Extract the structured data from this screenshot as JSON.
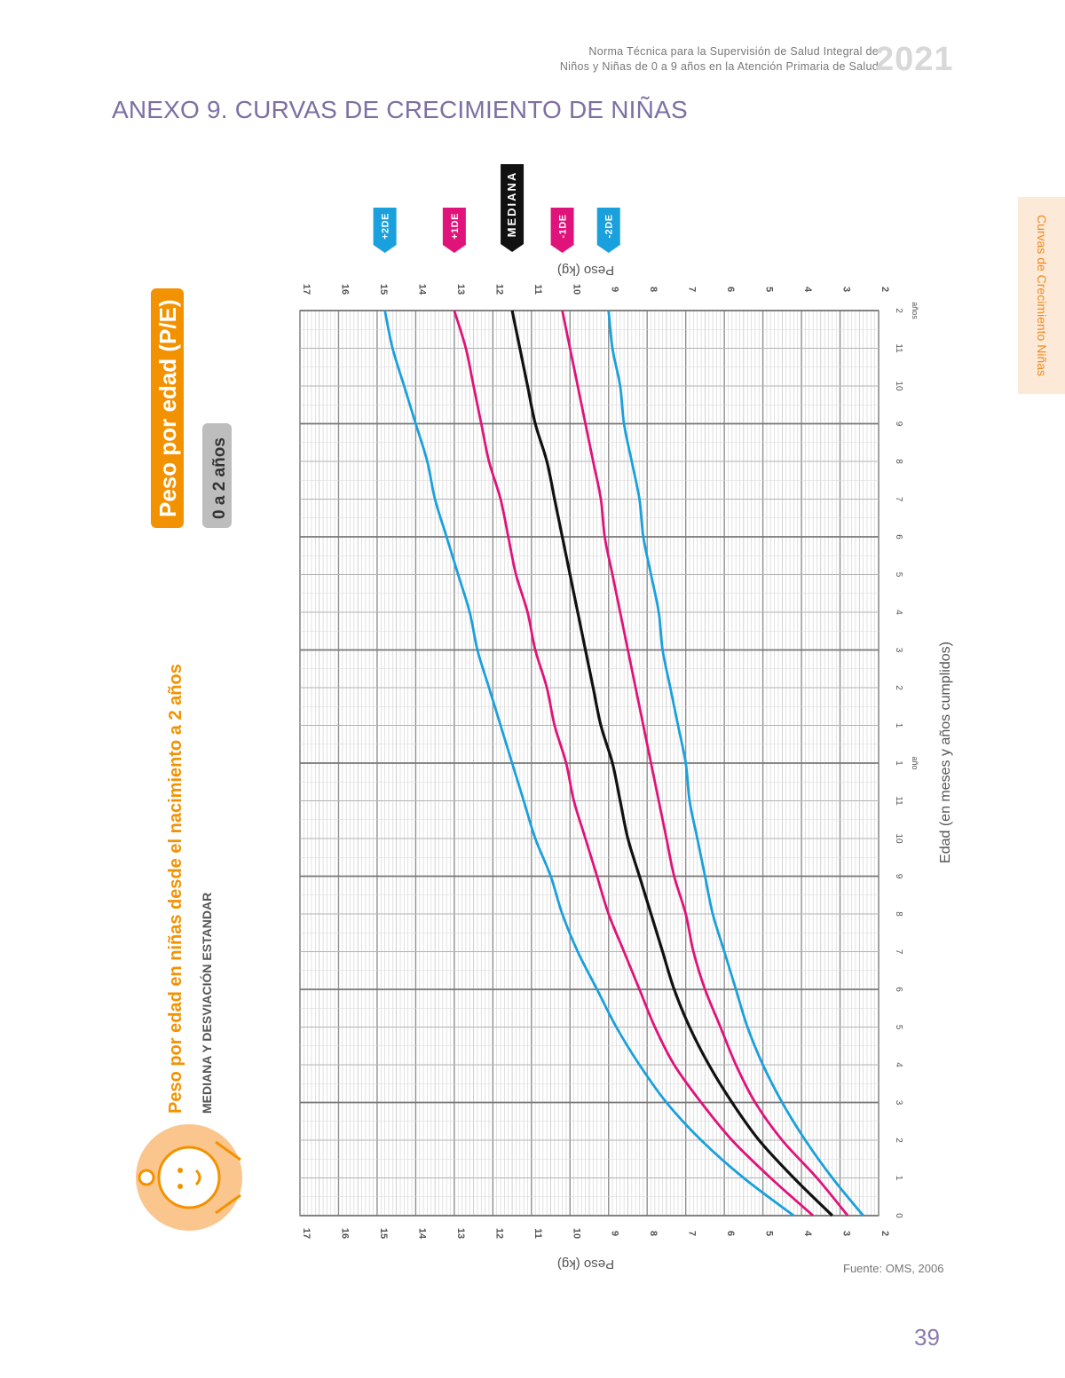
{
  "header": {
    "line1": "Norma Técnica para la Supervisión de Salud Integral de",
    "line2": "Niños y Niñas de 0 a 9 años en la Atención Primaria de Salud",
    "year": "2021"
  },
  "annex_title": "ANEXO 9.    CURVAS DE CRECIMIENTO DE NIÑAS",
  "side_tab": "Curvas de Crecimiento Niñas",
  "chart_header": {
    "title": "Peso por edad (P/E)",
    "age_range": "0 a 2 años",
    "subtitle": "Peso por edad en niñas desde el nacimiento a 2 años",
    "subtitle2": "MEDIANA Y DESVIACIÓN ESTANDAR"
  },
  "footer": {
    "source": "Fuente: OMS, 2006",
    "page": "39"
  },
  "colors": {
    "orange": "#f39200",
    "blue": "#1aa0dc",
    "magenta": "#e0137a",
    "black": "#111111",
    "grey_badge": "#bdbdbd"
  },
  "icon": "baby-face-icon",
  "chart_data": {
    "type": "line",
    "title": "Peso por edad en niñas desde el nacimiento a 2 años",
    "xlabel": "Edad (en meses y años cumplidos)",
    "ylabel": "Peso (kg)",
    "x_unit": "meses",
    "xlim": [
      0,
      24
    ],
    "ylim": [
      2,
      17
    ],
    "y_ticks": [
      2,
      3,
      4,
      5,
      6,
      7,
      8,
      9,
      10,
      11,
      12,
      13,
      14,
      15,
      16,
      17
    ],
    "x_tick_labels": [
      "0",
      "1",
      "2",
      "3",
      "4",
      "5",
      "6",
      "7",
      "8",
      "9",
      "10",
      "11",
      "1",
      "1",
      "2",
      "3",
      "4",
      "5",
      "6",
      "7",
      "8",
      "9",
      "10",
      "11",
      "2"
    ],
    "x_year_labels": [
      {
        "x": 12,
        "label": "año"
      },
      {
        "x": 24,
        "label": "años"
      }
    ],
    "grid": true,
    "x": [
      0,
      1,
      2,
      3,
      4,
      5,
      6,
      7,
      8,
      9,
      10,
      11,
      12,
      13,
      14,
      15,
      16,
      17,
      18,
      19,
      20,
      21,
      22,
      23,
      24
    ],
    "series": [
      {
        "name": "+2DE",
        "color": "#1aa0dc",
        "values": [
          4.2,
          5.5,
          6.6,
          7.5,
          8.2,
          8.8,
          9.3,
          9.8,
          10.2,
          10.5,
          10.9,
          11.2,
          11.5,
          11.8,
          12.1,
          12.4,
          12.6,
          12.9,
          13.2,
          13.5,
          13.7,
          14.0,
          14.3,
          14.6,
          14.8
        ]
      },
      {
        "name": "+1DE",
        "color": "#e0137a",
        "values": [
          3.7,
          4.8,
          5.8,
          6.6,
          7.3,
          7.8,
          8.2,
          8.6,
          9.0,
          9.3,
          9.6,
          9.9,
          10.1,
          10.4,
          10.6,
          10.9,
          11.1,
          11.4,
          11.6,
          11.8,
          12.1,
          12.3,
          12.5,
          12.7,
          13.0
        ]
      },
      {
        "name": "MEDIANA",
        "color": "#111111",
        "values": [
          3.2,
          4.2,
          5.1,
          5.8,
          6.4,
          6.9,
          7.3,
          7.6,
          7.9,
          8.2,
          8.5,
          8.7,
          8.9,
          9.2,
          9.4,
          9.6,
          9.8,
          10.0,
          10.2,
          10.4,
          10.6,
          10.9,
          11.1,
          11.3,
          11.5
        ]
      },
      {
        "name": "-1DE",
        "color": "#e0137a",
        "values": [
          2.8,
          3.6,
          4.5,
          5.2,
          5.7,
          6.1,
          6.5,
          6.8,
          7.0,
          7.3,
          7.5,
          7.7,
          7.9,
          8.1,
          8.3,
          8.5,
          8.7,
          8.9,
          9.1,
          9.2,
          9.4,
          9.6,
          9.8,
          10.0,
          10.2
        ]
      },
      {
        "name": "-2DE",
        "color": "#1aa0dc",
        "values": [
          2.4,
          3.2,
          3.9,
          4.5,
          5.0,
          5.4,
          5.7,
          6.0,
          6.3,
          6.5,
          6.7,
          6.9,
          7.0,
          7.2,
          7.4,
          7.6,
          7.7,
          7.9,
          8.1,
          8.2,
          8.4,
          8.6,
          8.7,
          8.9,
          9.0
        ]
      }
    ]
  }
}
